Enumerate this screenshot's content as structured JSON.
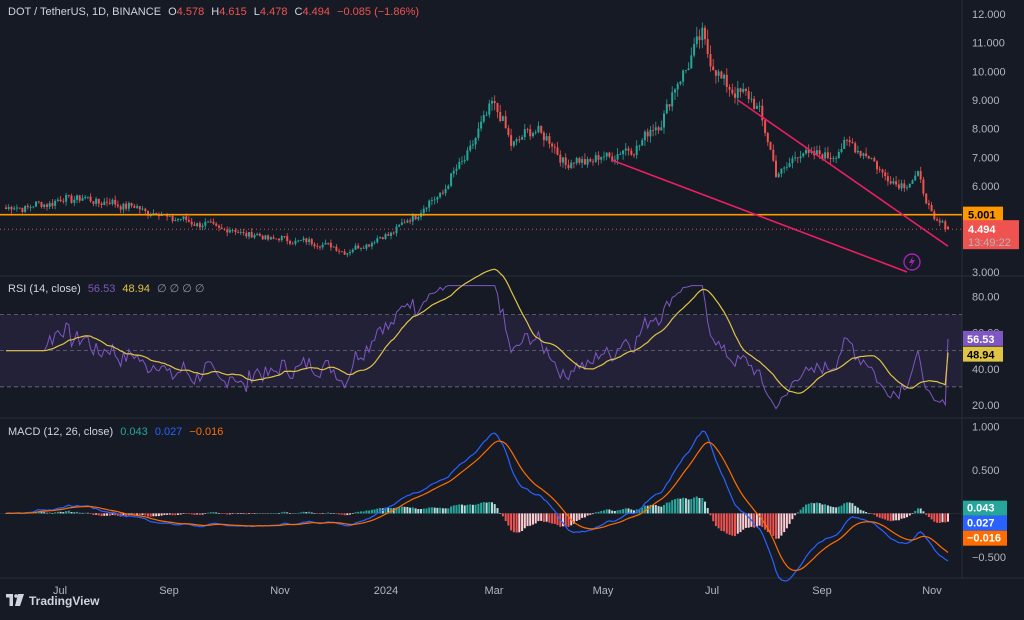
{
  "header": {
    "symbol": "DOT / TetherUS, 1D, BINANCE",
    "open_label": "O",
    "open": "4.578",
    "high_label": "H",
    "high": "4.615",
    "low_label": "L",
    "low": "4.478",
    "close_label": "C",
    "close": "4.494",
    "change": "−0.085 (−1.86%)"
  },
  "rsi_legend": {
    "label": "RSI (14, close)",
    "value1": "56.53",
    "value2": "48.94",
    "extras": "∅ ∅ ∅ ∅"
  },
  "macd_legend": {
    "label": "MACD (12, 26, close)",
    "hist": "0.043",
    "macd": "0.027",
    "signal": "−0.016"
  },
  "brand": "TradingView",
  "colors": {
    "bg": "#161a25",
    "up": "#26a69a",
    "down": "#ef5350",
    "trendline": "#e91e63",
    "support": "#ff9800",
    "rsi": "#7e57c2",
    "rsi_ma": "#e0c445",
    "macd": "#2962ff",
    "signal": "#ff6d00"
  },
  "chart_data": [
    {
      "type": "candlestick",
      "pane": "price",
      "title": "DOT / TetherUS, 1D, BINANCE",
      "y_ticks": [
        "3.000",
        "4.000",
        "5.000",
        "6.000",
        "7.000",
        "8.000",
        "9.000",
        "10.000",
        "11.000",
        "12.000"
      ],
      "ylim": [
        3.0,
        12.0
      ],
      "x_ticks": [
        "Jul",
        "Sep",
        "Nov",
        "2024",
        "Mar",
        "May",
        "Jul",
        "Sep",
        "Nov"
      ],
      "anchors": [
        {
          "month": "Jun",
          "close": 5.3
        },
        {
          "month": "Jul",
          "close": 5.6
        },
        {
          "month": "Aug",
          "close": 4.9
        },
        {
          "month": "Sep",
          "close": 4.3
        },
        {
          "month": "Oct",
          "close": 4.0
        },
        {
          "month": "Nov",
          "close": 5.0
        },
        {
          "month": "Dec",
          "close": 7.5
        },
        {
          "month": "Jan",
          "close": 6.9
        },
        {
          "month": "Feb",
          "close": 7.5
        },
        {
          "month": "Mar",
          "close": 10.5
        },
        {
          "month": "Apr",
          "close": 6.8
        },
        {
          "month": "May",
          "close": 7.2
        },
        {
          "month": "Jun",
          "close": 6.1
        },
        {
          "month": "Jul",
          "close": 6.2
        },
        {
          "month": "Aug",
          "close": 4.6
        },
        {
          "month": "Sep",
          "close": 4.3
        },
        {
          "month": "Oct",
          "close": 4.494
        }
      ],
      "horizontal_level": 5.001,
      "last_price": 4.494,
      "countdown": "13:49:22",
      "trendlines": [
        {
          "name": "upper",
          "from": {
            "time": "Mar 2024",
            "price": 9.0
          },
          "to": {
            "time": "Oct 2024",
            "price": 4.0
          }
        },
        {
          "name": "lower",
          "from": {
            "time": "Feb 2024",
            "price": 6.9
          },
          "to": {
            "time": "Sep 2024",
            "price": 3.0
          }
        }
      ]
    },
    {
      "type": "line",
      "pane": "rsi",
      "title": "RSI (14, close)",
      "y_ticks": [
        "20.00",
        "40.00",
        "60.00",
        "80.00"
      ],
      "ylim": [
        15,
        88
      ],
      "bands": [
        30,
        70
      ],
      "series": [
        {
          "name": "RSI",
          "last": 56.53
        },
        {
          "name": "RSI MA",
          "last": 48.94
        }
      ]
    },
    {
      "type": "line",
      "pane": "macd",
      "title": "MACD (12, 26, close)",
      "y_ticks": [
        "-0.500",
        "0.000",
        "0.500",
        "1.000"
      ],
      "ylim": [
        -0.65,
        1.05
      ],
      "series": [
        {
          "name": "Histogram",
          "last": 0.043
        },
        {
          "name": "MACD",
          "last": 0.027
        },
        {
          "name": "Signal",
          "last": -0.016
        }
      ]
    }
  ]
}
